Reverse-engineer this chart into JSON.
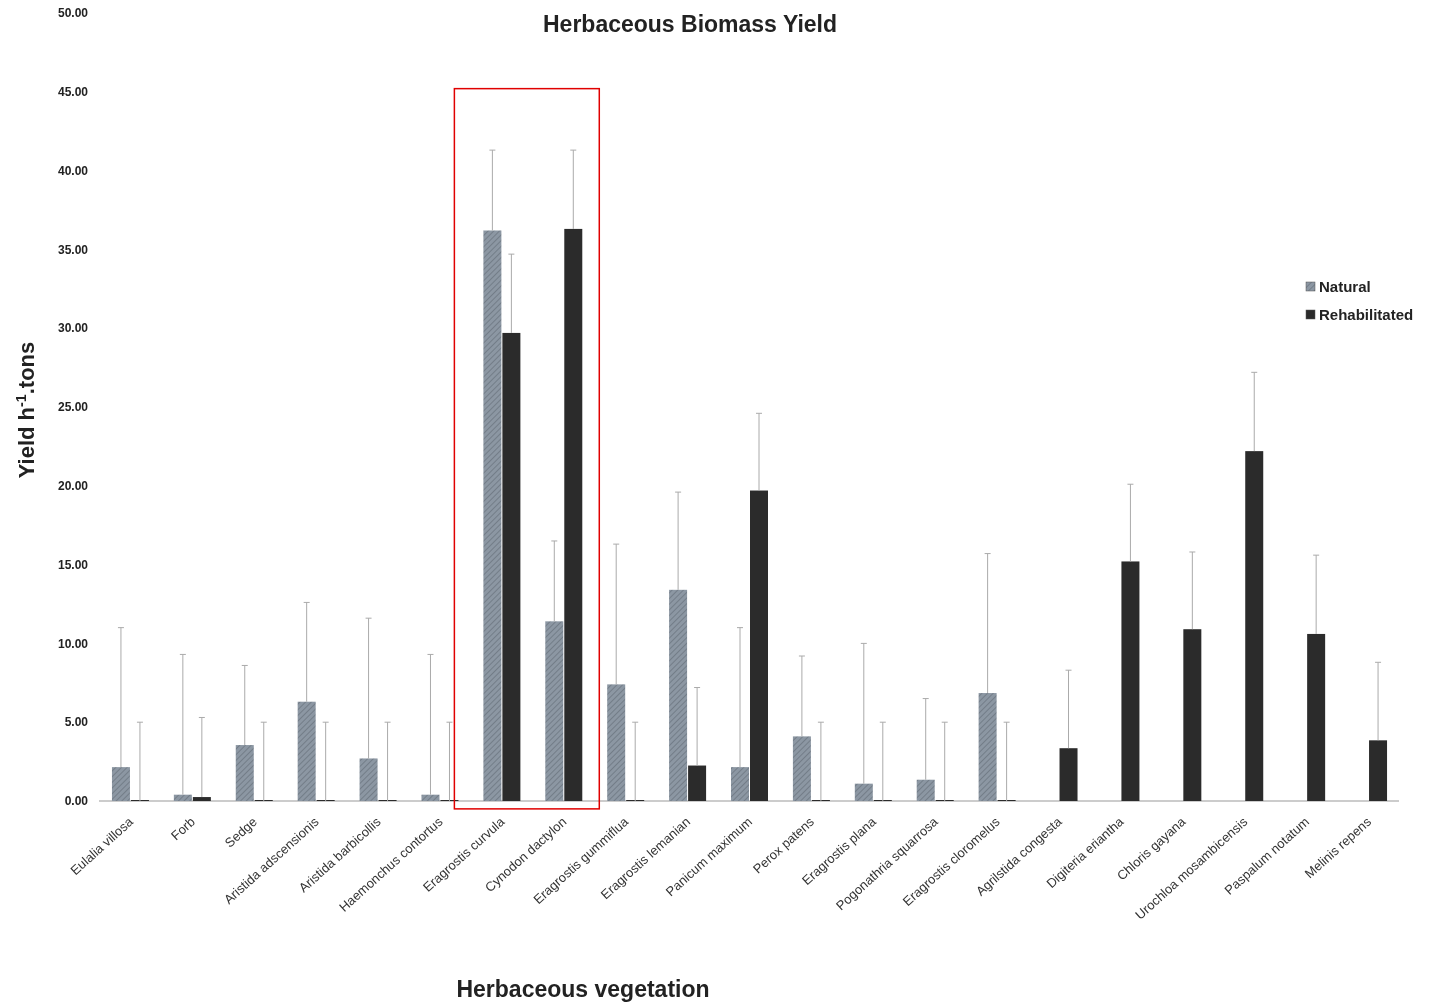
{
  "chart_data": {
    "type": "bar",
    "title": "Herbaceous Biomass Yield",
    "xlabel": "Herbaceous vegetation",
    "ylabel": "Yield h$^{-1}$.tons",
    "categories": [
      "Eulalia villosa",
      "Forb",
      "Sedge",
      "Aristida adscensionis",
      "Aristida barbicollis",
      "Haemonchus contortus",
      "Eragrostis curvula",
      "Cynodon dactylon",
      "Eragrostis gummiflua",
      "Eragrostis lemanian",
      "Panicum maximum",
      "Perox patens",
      "Eragrostis plana",
      "Pogonathria squarrosa",
      "Eragrostis cloromelus",
      "Agrilstida congesta",
      "Digiteria eriantha",
      "Chloris gayana",
      "Urochloa mosambicensis",
      "Paspalum notatum",
      "Melinis repens"
    ],
    "series": [
      {
        "name": "Natural",
        "color": "#8c97a3",
        "values": [
          2.15,
          0.4,
          3.55,
          6.3,
          2.7,
          0.4,
          36.2,
          11.4,
          7.4,
          13.4,
          2.15,
          4.1,
          1.1,
          1.35,
          6.85,
          null,
          null,
          null,
          null,
          null,
          null
        ],
        "errors": [
          [
            2.15,
            11.0
          ],
          [
            0.4,
            9.3
          ],
          [
            3.55,
            8.6
          ],
          [
            6.3,
            12.6
          ],
          [
            2.7,
            11.6
          ],
          [
            0.4,
            9.3
          ],
          [
            36.2,
            41.3
          ],
          [
            11.4,
            16.5
          ],
          [
            7.4,
            16.3
          ],
          [
            13.4,
            19.6
          ],
          [
            2.15,
            11.0
          ],
          [
            4.1,
            9.2
          ],
          [
            1.1,
            10.0
          ],
          [
            1.35,
            6.5
          ],
          [
            6.85,
            15.7
          ],
          null,
          null,
          null,
          null,
          null,
          null
        ]
      },
      {
        "name": "Rehabilitated",
        "color": "#2b2b2b",
        "values": [
          0,
          0.25,
          0,
          0,
          0,
          0,
          29.7,
          36.3,
          0,
          2.25,
          19.7,
          0,
          0,
          0,
          0,
          3.35,
          15.2,
          10.9,
          22.2,
          10.6,
          3.85
        ],
        "errors": [
          [
            0,
            5.0
          ],
          [
            0.25,
            5.3
          ],
          [
            0,
            5.0
          ],
          [
            0,
            5.0
          ],
          [
            0,
            5.0
          ],
          [
            0,
            5.0
          ],
          [
            29.7,
            34.7
          ],
          [
            36.3,
            41.3
          ],
          [
            0,
            5.0
          ],
          [
            2.25,
            7.2
          ],
          [
            19.7,
            24.6
          ],
          [
            0,
            5.0
          ],
          [
            0,
            5.0
          ],
          [
            0,
            5.0
          ],
          [
            0,
            5.0
          ],
          [
            3.35,
            8.3
          ],
          [
            15.2,
            20.1
          ],
          [
            10.9,
            15.8
          ],
          [
            22.2,
            27.2
          ],
          [
            10.6,
            15.6
          ],
          [
            3.85,
            8.8
          ]
        ]
      }
    ],
    "ylim": [
      0,
      50
    ],
    "yticks": [
      {
        "value": 0,
        "label": "0.00"
      },
      {
        "value": 5,
        "label": "5.00"
      },
      {
        "value": 10,
        "label": "10.00"
      },
      {
        "value": 15,
        "label": "15.00"
      },
      {
        "value": 20,
        "label": "20.00"
      },
      {
        "value": 25,
        "label": "25.00"
      },
      {
        "value": 30,
        "label": "30.00"
      },
      {
        "value": 35,
        "label": "35.00"
      },
      {
        "value": 40,
        "label": "40.00"
      },
      {
        "value": 45,
        "label": "45.00"
      },
      {
        "value": 50,
        "label": "50.00"
      }
    ],
    "legend": "right",
    "grid": false
  }
}
